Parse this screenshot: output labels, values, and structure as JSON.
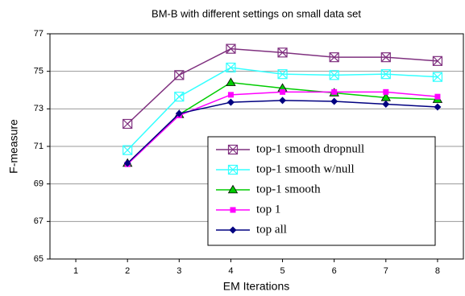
{
  "chart_data": {
    "type": "line",
    "title": "BM-B with different settings on small data set",
    "xlabel": "EM Iterations",
    "ylabel": "F-measure",
    "x": [
      2,
      3,
      4,
      5,
      6,
      7,
      8
    ],
    "xlim": [
      0.5,
      8.5
    ],
    "xticks": [
      1,
      2,
      3,
      4,
      5,
      6,
      7,
      8
    ],
    "ylim": [
      65,
      77
    ],
    "yticks": [
      65,
      67,
      69,
      71,
      73,
      75,
      77
    ],
    "grid": true,
    "legend": "lower right",
    "series": [
      {
        "name": "top-1 smooth dropnull",
        "color": "#7f307f",
        "marker": "boxed-x",
        "values": [
          72.2,
          74.8,
          76.2,
          76.0,
          75.75,
          75.75,
          75.55
        ]
      },
      {
        "name": "top-1 smooth w/null",
        "color": "#33ffff",
        "marker": "boxed-x",
        "values": [
          70.8,
          73.65,
          75.2,
          74.85,
          74.8,
          74.85,
          74.7
        ]
      },
      {
        "name": "top-1 smooth",
        "color": "#00cc00",
        "marker": "triangle",
        "values": [
          70.1,
          72.7,
          74.4,
          74.1,
          73.85,
          73.6,
          73.5
        ]
      },
      {
        "name": "top 1",
        "color": "#ff00ff",
        "marker": "square",
        "values": [
          70.05,
          72.65,
          73.75,
          73.9,
          73.9,
          73.9,
          73.65
        ]
      },
      {
        "name": "top all",
        "color": "#000080",
        "marker": "diamond",
        "values": [
          70.1,
          72.75,
          73.35,
          73.45,
          73.4,
          73.25,
          73.1
        ]
      }
    ]
  }
}
